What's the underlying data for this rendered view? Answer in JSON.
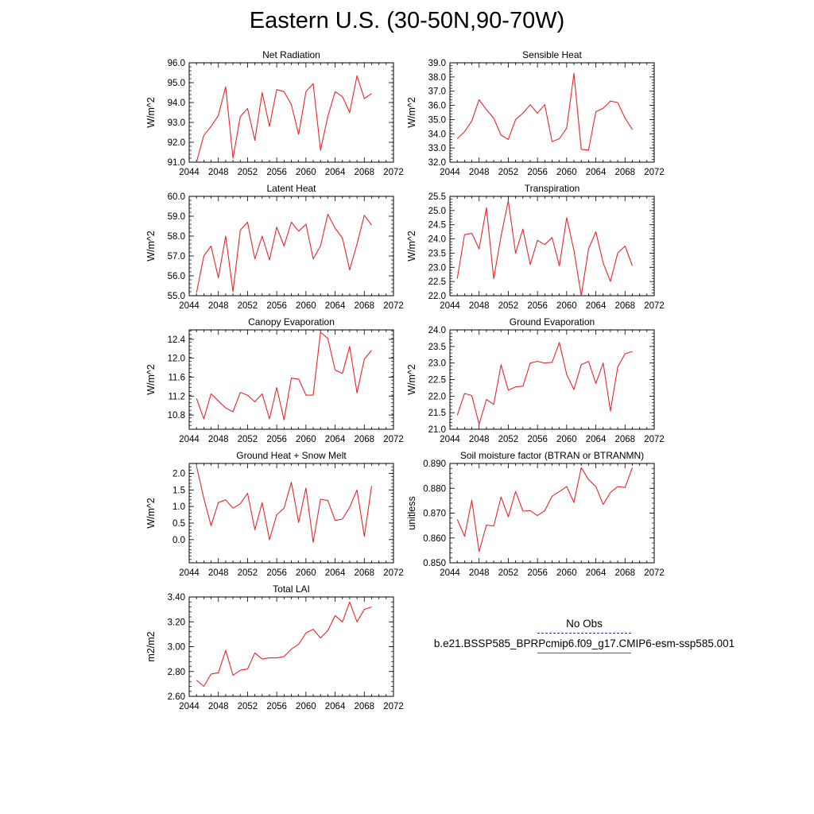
{
  "title": "Eastern U.S. (30-50N,90-70W)",
  "colors": {
    "model": "#e8262b",
    "obs": "#2a2a8a",
    "axis": "#000000"
  },
  "legend": {
    "obs_label": "No Obs",
    "model_label": "b.e21.BSSP585_BPRPcmip6.f09_g17.CMIP6-esm-ssp585.001"
  },
  "chart_data": [
    {
      "type": "line",
      "title": "Net Radiation",
      "ylabel": "W/m^2",
      "xlim": [
        2044,
        2072
      ],
      "ylim": [
        91.0,
        96.0
      ],
      "xticks": [
        2044,
        2048,
        2052,
        2056,
        2060,
        2064,
        2068,
        2072
      ],
      "yticks": [
        "91.0",
        "92.0",
        "93.0",
        "94.0",
        "95.0",
        "96.0"
      ],
      "x": [
        2045,
        2046,
        2047,
        2048,
        2049,
        2050,
        2051,
        2052,
        2053,
        2054,
        2055,
        2056,
        2057,
        2058,
        2059,
        2060,
        2061,
        2062,
        2063,
        2064,
        2065,
        2066,
        2067,
        2068,
        2069
      ],
      "values": [
        91.0,
        92.35,
        92.8,
        93.35,
        94.8,
        91.2,
        93.3,
        93.7,
        92.1,
        94.5,
        92.8,
        94.65,
        94.55,
        93.9,
        92.4,
        94.55,
        94.95,
        91.6,
        93.3,
        94.55,
        94.3,
        93.5,
        95.35,
        94.2,
        94.45
      ]
    },
    {
      "type": "line",
      "title": "Sensible Heat",
      "ylabel": "W/m^2",
      "xlim": [
        2044,
        2072
      ],
      "ylim": [
        32.0,
        39.0
      ],
      "xticks": [
        2044,
        2048,
        2052,
        2056,
        2060,
        2064,
        2068,
        2072
      ],
      "yticks": [
        "32.0",
        "33.0",
        "34.0",
        "35.0",
        "36.0",
        "37.0",
        "38.0",
        "39.0"
      ],
      "x": [
        2045,
        2046,
        2047,
        2048,
        2049,
        2050,
        2051,
        2052,
        2053,
        2054,
        2055,
        2056,
        2057,
        2058,
        2059,
        2060,
        2061,
        2062,
        2063,
        2064,
        2065,
        2066,
        2067,
        2068,
        2069
      ],
      "values": [
        33.65,
        34.15,
        34.9,
        36.4,
        35.7,
        35.1,
        33.9,
        33.6,
        35.0,
        35.45,
        36.05,
        35.45,
        36.05,
        33.45,
        33.65,
        34.4,
        38.25,
        32.9,
        32.85,
        35.55,
        35.8,
        36.3,
        36.2,
        35.1,
        34.3
      ]
    },
    {
      "type": "line",
      "title": "Latent Heat",
      "ylabel": "W/m^2",
      "xlim": [
        2044,
        2072
      ],
      "ylim": [
        55.0,
        60.0
      ],
      "xticks": [
        2044,
        2048,
        2052,
        2056,
        2060,
        2064,
        2068,
        2072
      ],
      "yticks": [
        "55.0",
        "56.0",
        "57.0",
        "58.0",
        "59.0",
        "60.0"
      ],
      "x": [
        2045,
        2046,
        2047,
        2048,
        2049,
        2050,
        2051,
        2052,
        2053,
        2054,
        2055,
        2056,
        2057,
        2058,
        2059,
        2060,
        2061,
        2062,
        2063,
        2064,
        2065,
        2066,
        2067,
        2068,
        2069
      ],
      "values": [
        55.15,
        57.0,
        57.5,
        55.9,
        58.0,
        55.2,
        58.3,
        58.7,
        56.85,
        58.0,
        56.8,
        58.45,
        57.5,
        58.7,
        58.25,
        58.6,
        56.85,
        57.5,
        59.1,
        58.4,
        57.9,
        56.3,
        57.6,
        59.05,
        58.55
      ]
    },
    {
      "type": "line",
      "title": "Transpiration",
      "ylabel": "W/m^2",
      "xlim": [
        2044,
        2072
      ],
      "ylim": [
        22.0,
        25.5
      ],
      "xticks": [
        2044,
        2048,
        2052,
        2056,
        2060,
        2064,
        2068,
        2072
      ],
      "yticks": [
        "22.0",
        "22.5",
        "23.0",
        "23.5",
        "24.0",
        "24.5",
        "25.0",
        "25.5"
      ],
      "x": [
        2045,
        2046,
        2047,
        2048,
        2049,
        2050,
        2051,
        2052,
        2053,
        2054,
        2055,
        2056,
        2057,
        2058,
        2059,
        2060,
        2061,
        2062,
        2063,
        2064,
        2065,
        2066,
        2067,
        2068,
        2069
      ],
      "values": [
        22.6,
        24.15,
        24.2,
        23.65,
        25.1,
        22.6,
        24.1,
        25.35,
        23.5,
        24.35,
        23.1,
        23.95,
        23.8,
        24.05,
        23.05,
        24.75,
        23.6,
        22.0,
        23.65,
        24.25,
        23.15,
        22.5,
        23.5,
        23.75,
        23.05
      ]
    },
    {
      "type": "line",
      "title": "Canopy Evaporation",
      "ylabel": "W/m^2",
      "xlim": [
        2044,
        2072
      ],
      "ylim": [
        10.5,
        12.6
      ],
      "xticks": [
        2044,
        2048,
        2052,
        2056,
        2060,
        2064,
        2068,
        2072
      ],
      "yticks": [
        "10.8",
        "11.2",
        "11.6",
        "12.0",
        "12.4"
      ],
      "ytick_values": [
        10.8,
        11.2,
        11.6,
        12.0,
        12.4
      ],
      "x": [
        2045,
        2046,
        2047,
        2048,
        2049,
        2050,
        2051,
        2052,
        2053,
        2054,
        2055,
        2056,
        2057,
        2058,
        2059,
        2060,
        2061,
        2062,
        2063,
        2064,
        2065,
        2066,
        2067,
        2068,
        2069
      ],
      "values": [
        11.15,
        10.72,
        11.25,
        11.1,
        10.95,
        10.87,
        11.28,
        11.22,
        11.08,
        11.25,
        10.72,
        11.38,
        10.7,
        11.58,
        11.56,
        11.22,
        11.22,
        12.55,
        12.42,
        11.75,
        11.68,
        12.25,
        11.27,
        11.98,
        12.17
      ]
    },
    {
      "type": "line",
      "title": "Ground Evaporation",
      "ylabel": "W/m^2",
      "xlim": [
        2044,
        2072
      ],
      "ylim": [
        21.0,
        24.0
      ],
      "xticks": [
        2044,
        2048,
        2052,
        2056,
        2060,
        2064,
        2068,
        2072
      ],
      "yticks": [
        "21.0",
        "21.5",
        "22.0",
        "22.5",
        "23.0",
        "23.5",
        "24.0"
      ],
      "x": [
        2045,
        2046,
        2047,
        2048,
        2049,
        2050,
        2051,
        2052,
        2053,
        2054,
        2055,
        2056,
        2057,
        2058,
        2059,
        2060,
        2061,
        2062,
        2063,
        2064,
        2065,
        2066,
        2067,
        2068,
        2069
      ],
      "values": [
        21.42,
        22.08,
        22.02,
        21.15,
        21.9,
        21.75,
        22.95,
        22.18,
        22.28,
        22.3,
        23.0,
        23.05,
        23.0,
        23.02,
        23.62,
        22.65,
        22.2,
        22.95,
        23.05,
        22.38,
        23.0,
        21.55,
        22.88,
        23.28,
        23.35
      ]
    },
    {
      "type": "line",
      "title": "Ground Heat + Snow Melt",
      "ylabel": "W/m^2",
      "xlim": [
        2044,
        2072
      ],
      "ylim": [
        -0.7,
        2.3
      ],
      "xticks": [
        2044,
        2048,
        2052,
        2056,
        2060,
        2064,
        2068,
        2072
      ],
      "yticks": [
        "0.0",
        "0.5",
        "1.0",
        "1.5",
        "2.0"
      ],
      "ytick_values": [
        0.0,
        0.5,
        1.0,
        1.5,
        2.0
      ],
      "x": [
        2045,
        2046,
        2047,
        2048,
        2049,
        2050,
        2051,
        2052,
        2053,
        2054,
        2055,
        2056,
        2057,
        2058,
        2059,
        2060,
        2061,
        2062,
        2063,
        2064,
        2065,
        2066,
        2067,
        2068,
        2069
      ],
      "values": [
        2.22,
        1.25,
        0.42,
        1.12,
        1.2,
        0.95,
        1.08,
        1.4,
        0.3,
        1.12,
        0.0,
        0.75,
        0.95,
        1.73,
        0.52,
        1.56,
        -0.08,
        1.22,
        1.18,
        0.58,
        0.62,
        0.98,
        1.5,
        0.1,
        1.62
      ]
    },
    {
      "type": "line",
      "title": "Soil moisture factor (BTRAN or BTRANMN)",
      "ylabel": "unitless",
      "xlim": [
        2044,
        2072
      ],
      "ylim": [
        0.85,
        0.89
      ],
      "xticks": [
        2044,
        2048,
        2052,
        2056,
        2060,
        2064,
        2068,
        2072
      ],
      "yticks": [
        "0.850",
        "0.860",
        "0.870",
        "0.880",
        "0.890"
      ],
      "x": [
        2045,
        2046,
        2047,
        2048,
        2049,
        2050,
        2051,
        2052,
        2053,
        2054,
        2055,
        2056,
        2057,
        2058,
        2059,
        2060,
        2061,
        2062,
        2063,
        2064,
        2065,
        2066,
        2067,
        2068,
        2069
      ],
      "values": [
        0.8675,
        0.8607,
        0.8752,
        0.8545,
        0.8652,
        0.8648,
        0.8765,
        0.8685,
        0.8787,
        0.8708,
        0.871,
        0.869,
        0.871,
        0.8768,
        0.8787,
        0.8807,
        0.8743,
        0.8883,
        0.8835,
        0.8807,
        0.8735,
        0.8783,
        0.8807,
        0.8803,
        0.8883
      ]
    },
    {
      "type": "line",
      "title": "Total LAI",
      "ylabel": "m2/m2",
      "xlim": [
        2044,
        2072
      ],
      "ylim": [
        2.6,
        3.4
      ],
      "xticks": [
        2044,
        2048,
        2052,
        2056,
        2060,
        2064,
        2068,
        2072
      ],
      "yticks": [
        "2.60",
        "2.80",
        "3.00",
        "3.20",
        "3.40"
      ],
      "x": [
        2045,
        2046,
        2047,
        2048,
        2049,
        2050,
        2051,
        2052,
        2053,
        2054,
        2055,
        2056,
        2057,
        2058,
        2059,
        2060,
        2061,
        2062,
        2063,
        2064,
        2065,
        2066,
        2067,
        2068,
        2069
      ],
      "values": [
        2.73,
        2.68,
        2.78,
        2.79,
        2.97,
        2.77,
        2.81,
        2.82,
        2.95,
        2.9,
        2.91,
        2.91,
        2.92,
        2.98,
        3.02,
        3.11,
        3.14,
        3.07,
        3.13,
        3.25,
        3.2,
        3.36,
        3.2,
        3.3,
        3.32
      ]
    }
  ]
}
